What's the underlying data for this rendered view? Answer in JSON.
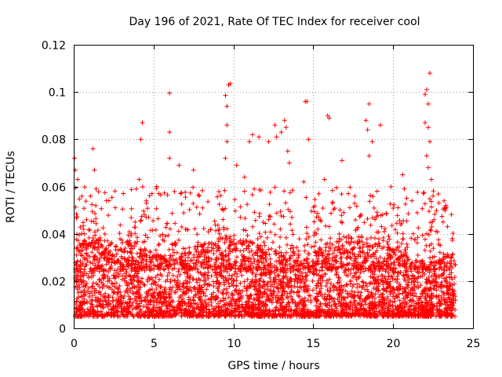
{
  "chart_data": {
    "type": "scatter",
    "title": "Day 196 of 2021, Rate Of TEC Index for receiver cool",
    "xlabel": "GPS time / hours",
    "ylabel": "ROTI / TECUs",
    "xlim": [
      0,
      25
    ],
    "ylim": [
      0,
      0.12
    ],
    "xticks": [
      "0",
      "5",
      "10",
      "15",
      "20",
      "25"
    ],
    "yticks": [
      "0",
      "0.02",
      "0.04",
      "0.06",
      "0.08",
      "0.1",
      "0.12"
    ],
    "grid": true,
    "marker": "+",
    "color": "#ff0000",
    "series": [
      {
        "name": "ROTI",
        "baseline_note": "dense band of points between 0.004 and 0.03 across 0-24 h",
        "peaks": [
          [
            0.05,
            0.072
          ],
          [
            0.1,
            0.067
          ],
          [
            0.25,
            0.063
          ],
          [
            1.2,
            0.076
          ],
          [
            1.3,
            0.067
          ],
          [
            1.4,
            0.059
          ],
          [
            2.2,
            0.054
          ],
          [
            3.1,
            0.057
          ],
          [
            4.3,
            0.087
          ],
          [
            4.2,
            0.08
          ],
          [
            4.1,
            0.063
          ],
          [
            5.2,
            0.06
          ],
          [
            6.0,
            0.0995
          ],
          [
            6.0,
            0.083
          ],
          [
            6.0,
            0.072
          ],
          [
            6.6,
            0.069
          ],
          [
            6.7,
            0.057
          ],
          [
            7.5,
            0.067
          ],
          [
            9.5,
            0.0985
          ],
          [
            9.6,
            0.094
          ],
          [
            9.6,
            0.086
          ],
          [
            9.7,
            0.103
          ],
          [
            9.8,
            0.1035
          ],
          [
            9.5,
            0.072
          ],
          [
            9.6,
            0.079
          ],
          [
            10.2,
            0.069
          ],
          [
            10.7,
            0.064
          ],
          [
            11.0,
            0.079
          ],
          [
            11.2,
            0.082
          ],
          [
            11.6,
            0.081
          ],
          [
            12.2,
            0.079
          ],
          [
            12.6,
            0.086
          ],
          [
            12.7,
            0.081
          ],
          [
            13.0,
            0.083
          ],
          [
            13.2,
            0.088
          ],
          [
            13.3,
            0.085
          ],
          [
            13.4,
            0.075
          ],
          [
            13.5,
            0.07
          ],
          [
            14.5,
            0.096
          ],
          [
            14.6,
            0.096
          ],
          [
            14.7,
            0.08
          ],
          [
            14.4,
            0.062
          ],
          [
            15.9,
            0.09
          ],
          [
            16.0,
            0.089
          ],
          [
            15.7,
            0.063
          ],
          [
            16.8,
            0.071
          ],
          [
            18.3,
            0.088
          ],
          [
            18.5,
            0.095
          ],
          [
            18.4,
            0.084
          ],
          [
            18.7,
            0.079
          ],
          [
            18.5,
            0.073
          ],
          [
            19.2,
            0.086
          ],
          [
            19.0,
            0.058
          ],
          [
            20.6,
            0.065
          ],
          [
            20.7,
            0.059
          ],
          [
            22.0,
            0.099
          ],
          [
            22.1,
            0.101
          ],
          [
            22.2,
            0.095
          ],
          [
            22.3,
            0.108
          ],
          [
            22.0,
            0.087
          ],
          [
            22.2,
            0.085
          ],
          [
            22.3,
            0.079
          ],
          [
            22.1,
            0.073
          ],
          [
            22.2,
            0.068
          ],
          [
            22.4,
            0.063
          ],
          [
            22.5,
            0.056
          ],
          [
            23.3,
            0.052
          ],
          [
            23.4,
            0.043
          ],
          [
            23.7,
            0.038
          ]
        ]
      }
    ]
  }
}
